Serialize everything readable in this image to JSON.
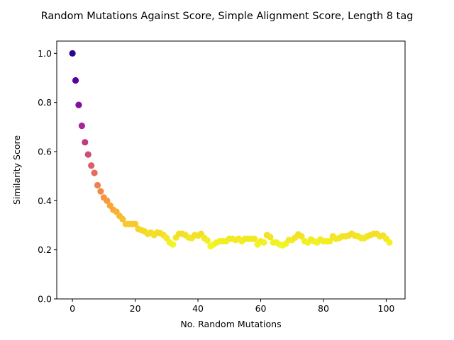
{
  "chart_data": {
    "type": "scatter",
    "title": "Random Mutations Against Score, Simple Alignment Score, Length 8 tag",
    "xlabel": "No. Random Mutations",
    "ylabel": "Similarity Score",
    "xlim": [
      -5,
      106
    ],
    "ylim": [
      0,
      1.05
    ],
    "xticks": [
      0,
      20,
      40,
      60,
      80,
      100
    ],
    "yticks": [
      0.0,
      0.2,
      0.4,
      0.6,
      0.8,
      1.0
    ],
    "xtick_labels": [
      "0",
      "20",
      "40",
      "60",
      "80",
      "100"
    ],
    "ytick_labels": [
      "0.0",
      "0.2",
      "0.4",
      "0.6",
      "0.8",
      "1.0"
    ],
    "grid": false,
    "colormap": "plasma",
    "x": [
      0,
      1,
      2,
      3,
      4,
      5,
      6,
      7,
      8,
      9,
      10,
      11,
      12,
      13,
      14,
      15,
      16,
      17,
      18,
      19,
      20,
      21,
      22,
      23,
      24,
      25,
      26,
      27,
      28,
      29,
      30,
      31,
      32,
      33,
      34,
      35,
      36,
      37,
      38,
      39,
      40,
      41,
      42,
      43,
      44,
      45,
      46,
      47,
      48,
      49,
      50,
      51,
      52,
      53,
      54,
      55,
      56,
      57,
      58,
      59,
      60,
      61,
      62,
      63,
      64,
      65,
      66,
      67,
      68,
      69,
      70,
      71,
      72,
      73,
      74,
      75,
      76,
      77,
      78,
      79,
      80,
      81,
      82,
      83,
      84,
      85,
      86,
      87,
      88,
      89,
      90,
      91,
      92,
      93,
      94,
      95,
      96,
      97,
      98,
      99,
      100,
      101
    ],
    "y": [
      1.0,
      0.89,
      0.79,
      0.705,
      0.638,
      0.588,
      0.543,
      0.513,
      0.463,
      0.438,
      0.413,
      0.4,
      0.38,
      0.363,
      0.355,
      0.338,
      0.325,
      0.305,
      0.305,
      0.305,
      0.305,
      0.285,
      0.28,
      0.275,
      0.265,
      0.27,
      0.26,
      0.27,
      0.268,
      0.26,
      0.248,
      0.23,
      0.222,
      0.25,
      0.265,
      0.265,
      0.26,
      0.25,
      0.248,
      0.26,
      0.258,
      0.265,
      0.248,
      0.238,
      0.215,
      0.222,
      0.23,
      0.235,
      0.235,
      0.235,
      0.245,
      0.245,
      0.24,
      0.245,
      0.235,
      0.245,
      0.245,
      0.245,
      0.245,
      0.222,
      0.235,
      0.23,
      0.26,
      0.252,
      0.23,
      0.23,
      0.222,
      0.218,
      0.225,
      0.24,
      0.24,
      0.25,
      0.263,
      0.255,
      0.235,
      0.23,
      0.242,
      0.235,
      0.23,
      0.242,
      0.235,
      0.235,
      0.235,
      0.255,
      0.245,
      0.248,
      0.255,
      0.255,
      0.258,
      0.265,
      0.258,
      0.255,
      0.248,
      0.248,
      0.255,
      0.26,
      0.265,
      0.265,
      0.255,
      0.258,
      0.245,
      0.23
    ],
    "marker_color_stops": [
      "#f0f921",
      "#fca636",
      "#e16462",
      "#b12a90",
      "#6a00a8",
      "#2a0593"
    ]
  }
}
